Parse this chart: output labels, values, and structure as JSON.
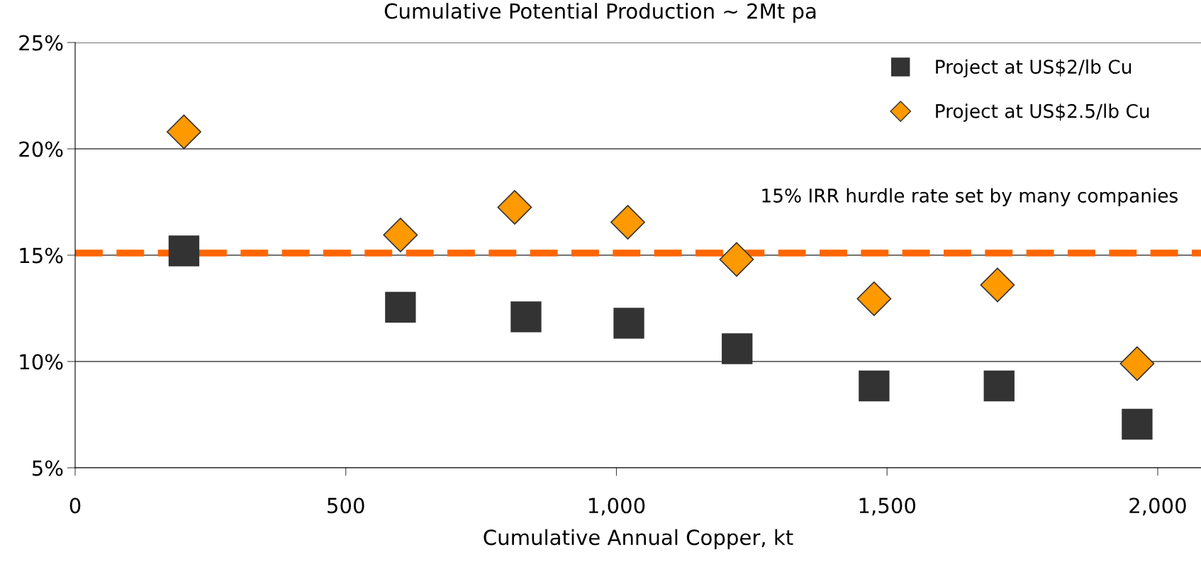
{
  "chart_data": {
    "type": "scatter",
    "title": "Cumulative Potential Production ~ 2Mt pa",
    "xlabel": "Cumulative Annual Copper, kt",
    "series": [
      {
        "name": "Project at US$2/lb Cu",
        "color": "#333333",
        "marker": "square",
        "x": [
          201,
          601,
          833,
          1023,
          1223,
          1476,
          1707,
          1962
        ],
        "values": [
          15.2,
          12.55,
          12.1,
          11.8,
          10.6,
          8.85,
          8.85,
          7.05
        ]
      },
      {
        "name": "Project at US$2.5/lb Cu",
        "color": "#ff9900",
        "marker": "diamond",
        "x": [
          201,
          601,
          812,
          1021,
          1222,
          1476,
          1704,
          1962
        ],
        "values": [
          20.8,
          15.95,
          17.25,
          16.55,
          14.8,
          12.95,
          13.6,
          9.9
        ]
      }
    ],
    "xlim": [
      0,
      2080
    ],
    "xticks": [
      0,
      {
        "value": 500,
        "label": "500"
      },
      {
        "value": 1000,
        "label": "1,000"
      },
      {
        "value": 1500,
        "label": "1,500"
      },
      {
        "value": 2000,
        "label": "2,000"
      }
    ],
    "ylim": [
      5,
      25
    ],
    "yticks": [
      {
        "value": 5,
        "label": "5%"
      },
      {
        "value": 10,
        "label": "10%"
      },
      {
        "value": 15,
        "label": "15%"
      },
      {
        "value": 20,
        "label": "20%"
      },
      {
        "value": 25,
        "label": "25%"
      }
    ],
    "ref_lines": [
      {
        "axis": "y",
        "value": 15.1,
        "label": "15% IRR hurdle rate set by many companies",
        "color": "#ff6600",
        "line_style": "dashed"
      }
    ],
    "grid": "y",
    "legend": "top right"
  }
}
